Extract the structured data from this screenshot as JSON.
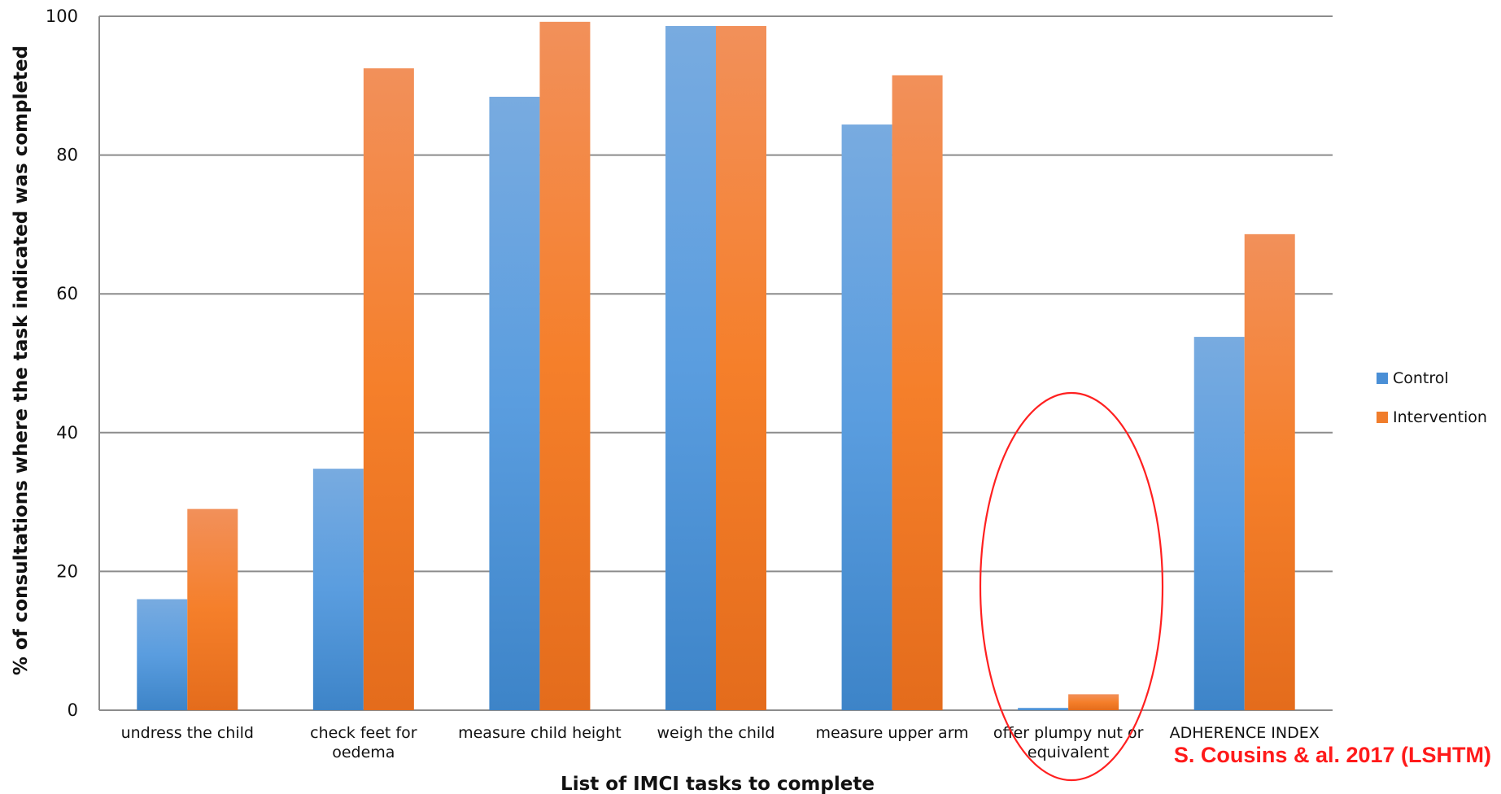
{
  "chart_data": {
    "type": "bar",
    "title": "",
    "xlabel": "List of IMCI tasks to complete",
    "ylabel": "% of consultations where the task indicated was completed",
    "ylim": [
      0,
      100
    ],
    "yticks": [
      "0",
      "20",
      "40",
      "60",
      "80",
      "100"
    ],
    "grid": true,
    "legend_position": "right",
    "categories": [
      [
        "undress the child"
      ],
      [
        "check feet for",
        "oedema"
      ],
      [
        "measure child height"
      ],
      [
        "weigh the child"
      ],
      [
        "measure upper arm"
      ],
      [
        "offer plumpy nut or",
        "equivalent"
      ],
      [
        "ADHERENCE INDEX"
      ]
    ],
    "series": [
      {
        "name": "Control",
        "color": "#4a8fd6",
        "values": [
          16,
          34.8,
          88.4,
          98.6,
          84.4,
          0.3,
          53.8
        ]
      },
      {
        "name": "Intervention",
        "color": "#f07d2c",
        "values": [
          29,
          92.5,
          99.2,
          98.6,
          91.5,
          2.3,
          68.6
        ]
      }
    ],
    "annotations": {
      "highlight_category": "offer plumpy nut or equivalent",
      "highlight_color": "#ff2020",
      "credit": "S. Cousins & al. 2017 (LSHTM)"
    }
  }
}
